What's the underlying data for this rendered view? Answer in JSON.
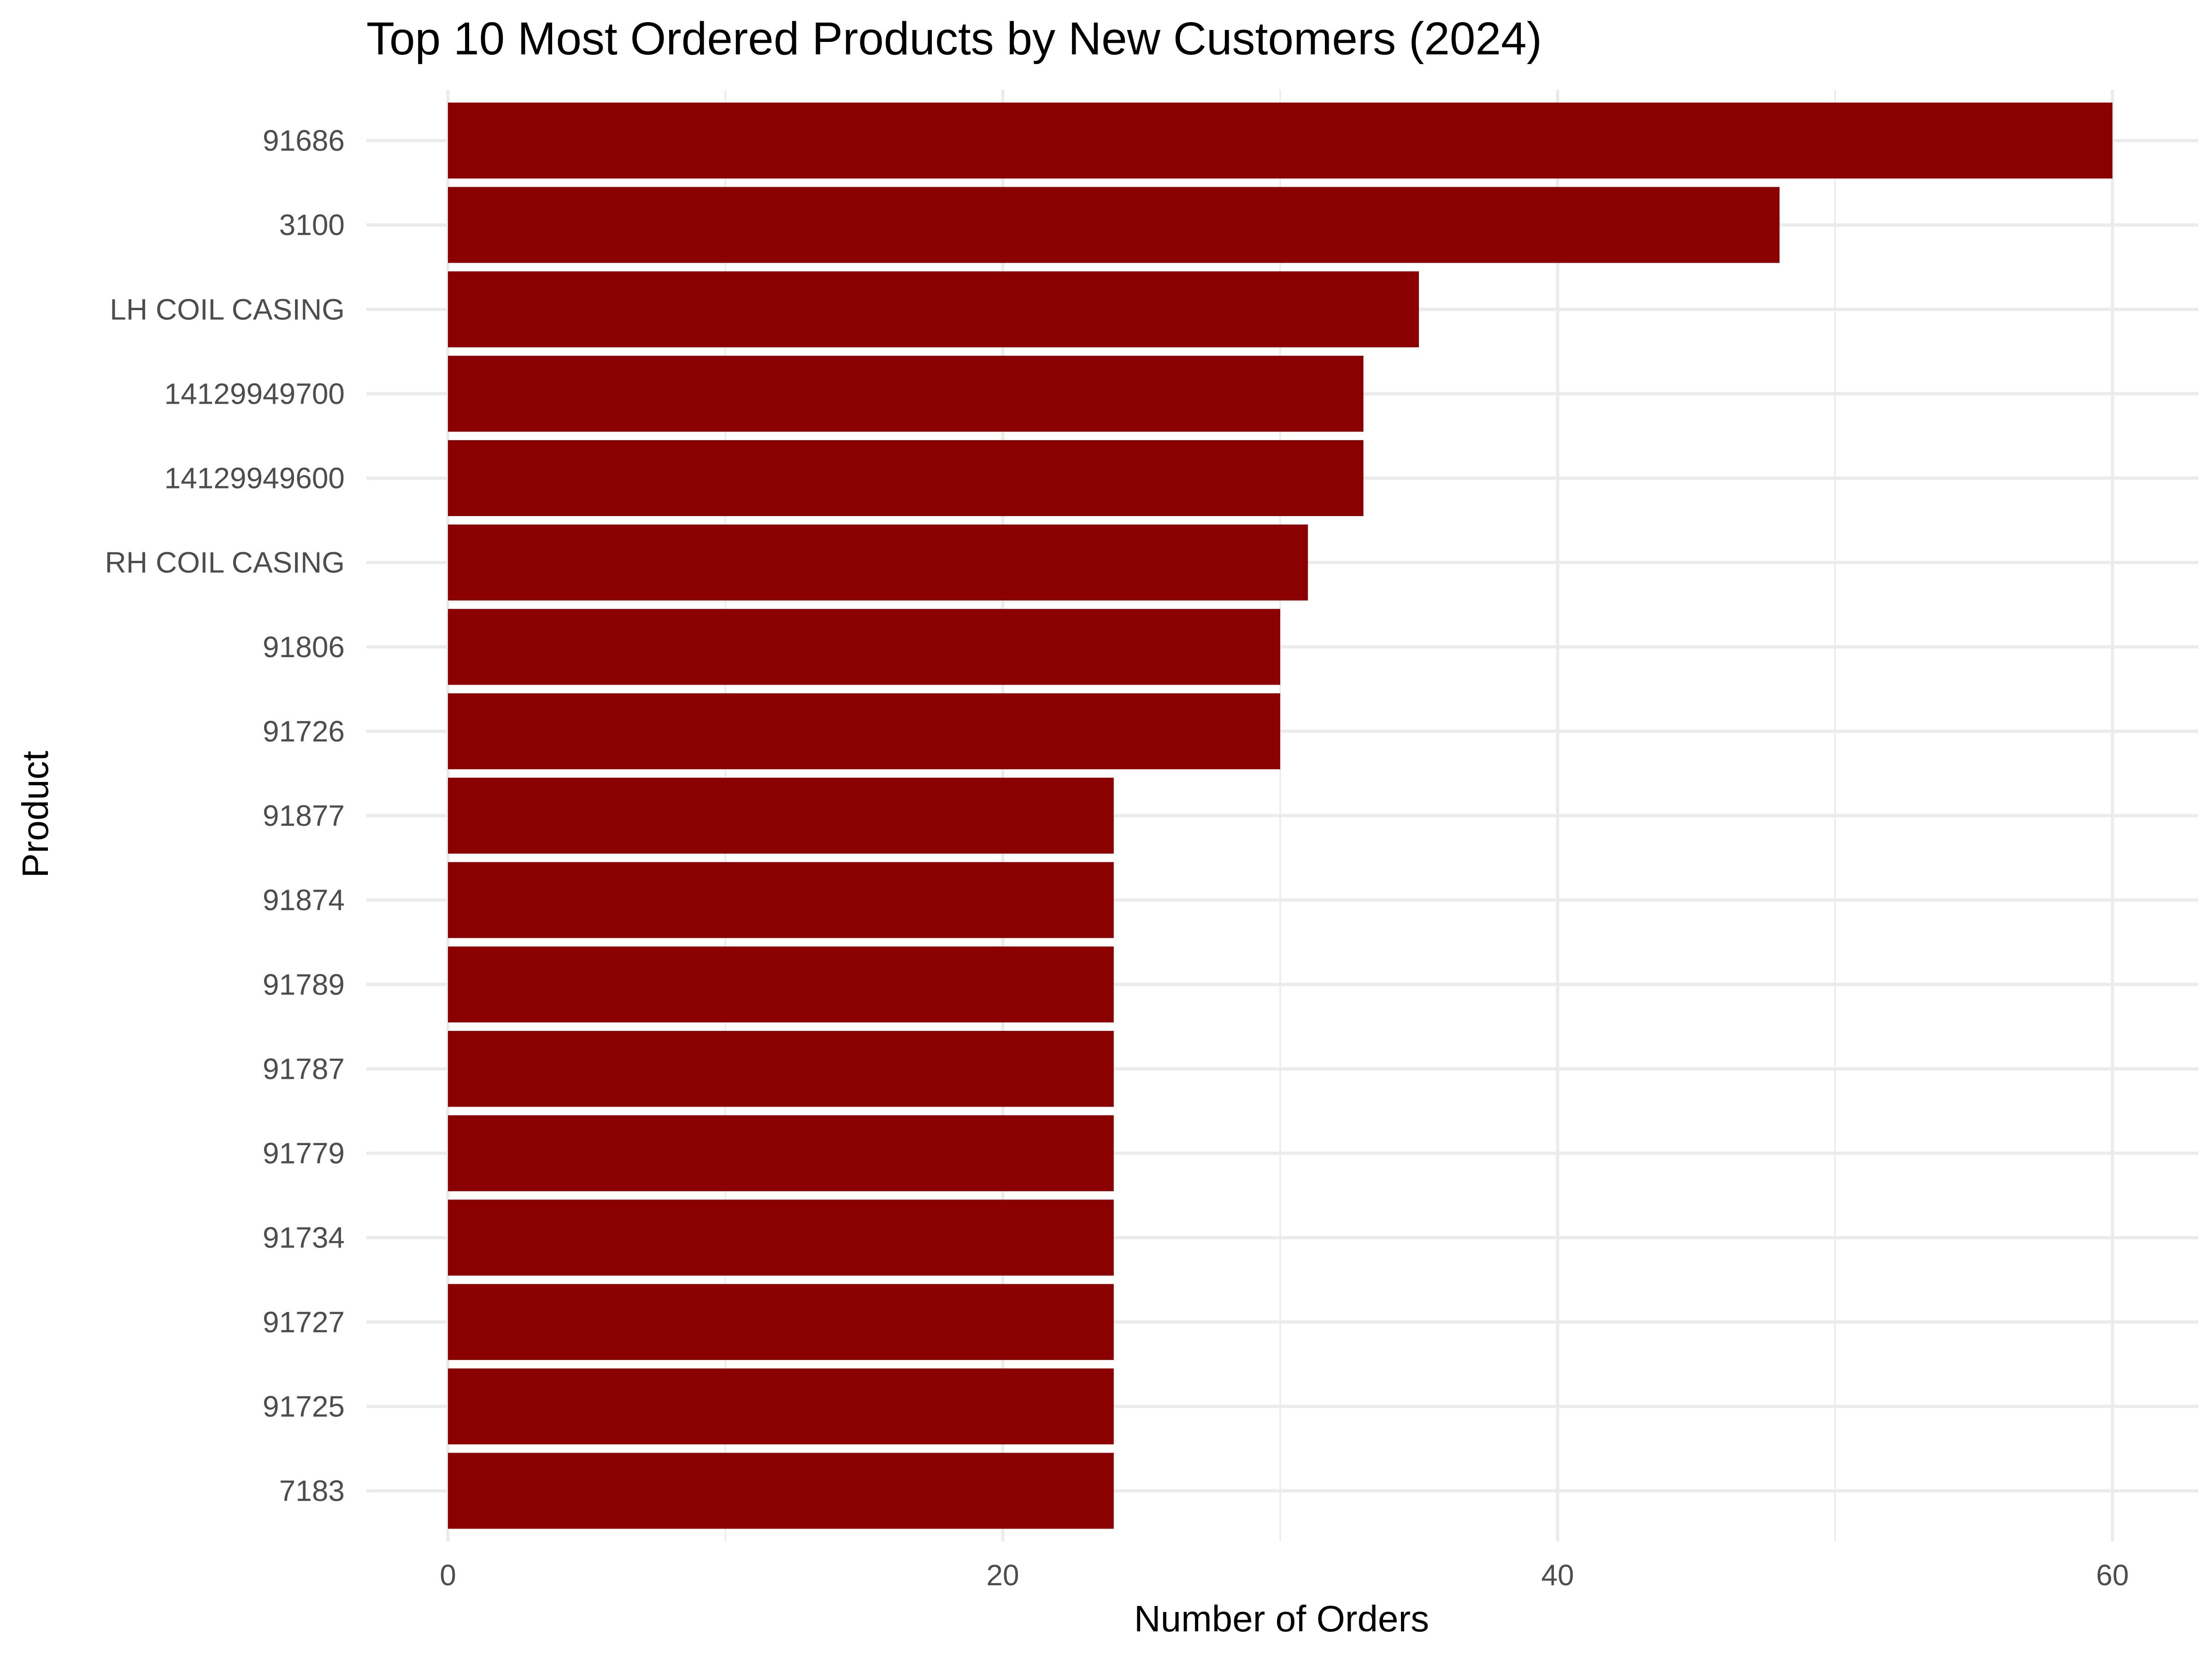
{
  "chart_data": {
    "type": "bar",
    "orientation": "horizontal",
    "title": "Top 10 Most Ordered Products by New Customers (2024)",
    "xlabel": "Number of Orders",
    "ylabel": "Product",
    "xlim": [
      0,
      60
    ],
    "x_ticks": [
      0,
      20,
      40,
      60
    ],
    "grid": true,
    "legend": "none",
    "bar_color": "#8B0000",
    "categories": [
      "91686",
      "3100",
      "LH COIL CASING",
      "14129949700",
      "14129949600",
      "RH COIL CASING",
      "91806",
      "91726",
      "91877",
      "91874",
      "91789",
      "91787",
      "91779",
      "91734",
      "91727",
      "91725",
      "7183"
    ],
    "values": [
      60,
      48,
      35,
      33,
      33,
      31,
      30,
      30,
      24,
      24,
      24,
      24,
      24,
      24,
      24,
      24,
      24
    ]
  }
}
